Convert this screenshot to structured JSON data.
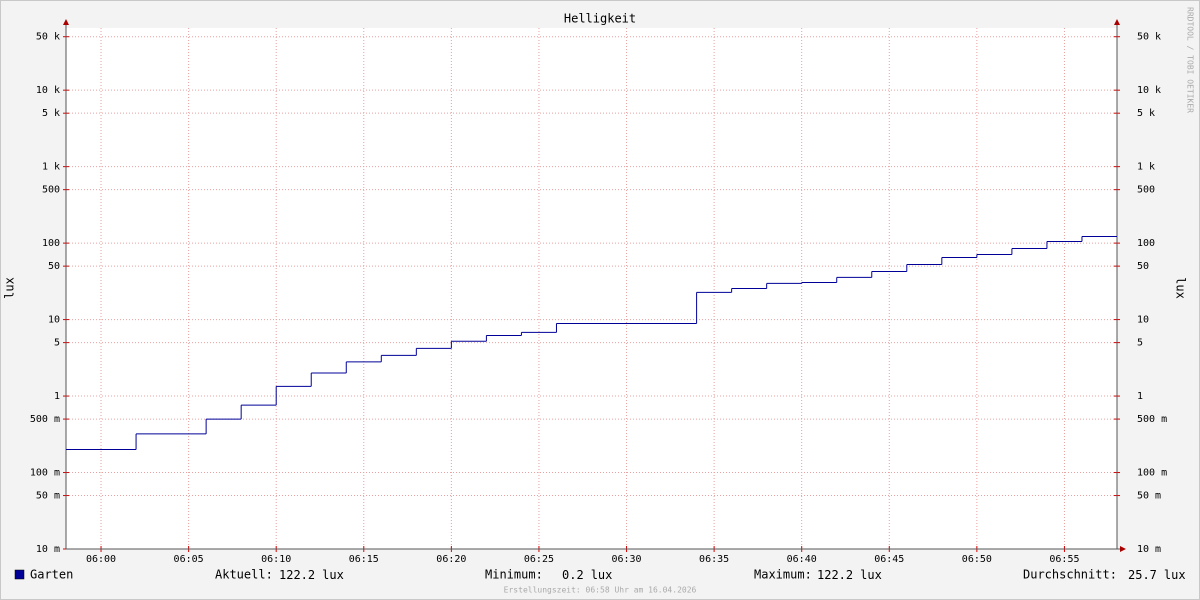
{
  "chart_data": {
    "type": "line",
    "title": "Helligkeit",
    "y_label": "lux",
    "watermark": "RRDTOOL / TOBI OETIKER",
    "footer": "Erstellungszeit: 06:58 Uhr am 16.04.2026",
    "log_scale": true,
    "grid": true,
    "step": "post",
    "x": [
      "05:58",
      "06:02",
      "06:06",
      "06:08",
      "06:10",
      "06:12",
      "06:14",
      "06:16",
      "06:18",
      "06:20",
      "06:22",
      "06:24",
      "06:26",
      "06:34",
      "06:36",
      "06:38",
      "06:40",
      "06:42",
      "06:44",
      "06:46",
      "06:48",
      "06:50",
      "06:52",
      "06:54",
      "06:56"
    ],
    "xlim": [
      "05:58",
      "06:58"
    ],
    "xticks": [
      "06:00",
      "06:05",
      "06:10",
      "06:15",
      "06:20",
      "06:25",
      "06:30",
      "06:35",
      "06:40",
      "06:45",
      "06:50",
      "06:55"
    ],
    "series": [
      {
        "name": "Garten",
        "color": "#000099",
        "values": [
          0.2,
          0.32,
          0.5,
          0.76,
          1.34,
          2.0,
          2.8,
          3.4,
          4.2,
          5.2,
          6.2,
          6.8,
          8.9,
          22.7,
          25.5,
          29.7,
          30.6,
          35.6,
          42.6,
          52.5,
          64.9,
          71,
          84.9,
          105,
          122.2
        ]
      }
    ],
    "ylim": [
      0.01,
      65000
    ],
    "yticks": [
      {
        "value": 0.01,
        "label": "10 m"
      },
      {
        "value": 0.05,
        "label": "50 m"
      },
      {
        "value": 0.1,
        "label": "100 m"
      },
      {
        "value": 0.5,
        "label": "500 m"
      },
      1,
      5,
      10,
      50,
      100,
      500,
      {
        "value": 1000,
        "label": "1 k"
      },
      {
        "value": 5000,
        "label": "5 k"
      },
      {
        "value": 10000,
        "label": "10 k"
      },
      {
        "value": 50000,
        "label": "50 k"
      }
    ],
    "stats": [
      {
        "label": "Aktuell:",
        "value": 122.2,
        "unit": "lux"
      },
      {
        "label": "Minimum:",
        "value": 0.2,
        "unit": "lux"
      },
      {
        "label": "Maximum:",
        "value": 122.2,
        "unit": "lux"
      },
      {
        "label": "Durchschnitt:",
        "value": 25.7,
        "unit": "lux"
      }
    ]
  }
}
